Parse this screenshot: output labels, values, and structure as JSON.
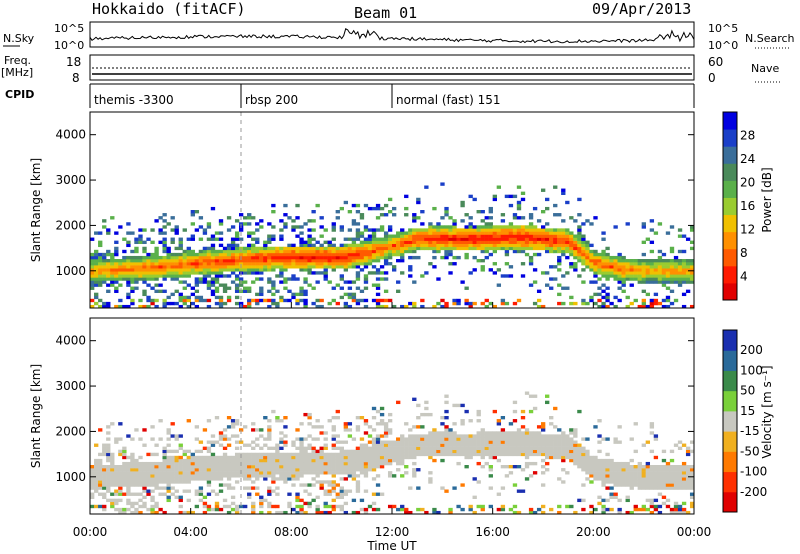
{
  "header": {
    "station": "Hokkaido (fitACF)",
    "beam": "Beam 01",
    "date": "09/Apr/2013"
  },
  "noise_panel": {
    "left_label": "N.Sky",
    "right_label": "N.Search",
    "yticks_left": [
      "10^5",
      "10^0"
    ],
    "yticks_right": [
      "10^5",
      "10^0"
    ]
  },
  "freq_panel": {
    "left_label_1": "Freq.",
    "left_label_2": "[MHz]",
    "left_ticks": [
      "18",
      "8"
    ],
    "right_label": "Nave",
    "right_ticks": [
      "60",
      "0"
    ]
  },
  "cpid_panel": {
    "label": "CPID",
    "segments": [
      {
        "label": "themis -3300",
        "start_hour": 0,
        "end_hour": 6.0
      },
      {
        "label": "rbsp 200",
        "start_hour": 6.0,
        "end_hour": 12.0
      },
      {
        "label": "normal (fast) 151",
        "start_hour": 12.0,
        "end_hour": 24.0
      }
    ]
  },
  "power_panel": {
    "ylabel": "Slant Range [km]",
    "yticks": [
      "4000",
      "3000",
      "2000",
      "1000"
    ],
    "colorbar_label": "Power [dB]",
    "colorbar_ticks": [
      "28",
      "24",
      "20",
      "16",
      "12",
      "8",
      "4"
    ],
    "colors": [
      "#0000e0",
      "#1a3fc8",
      "#3a6e9a",
      "#4a8a5a",
      "#5ab04a",
      "#9acc30",
      "#f0c000",
      "#ff9000",
      "#ff5a00",
      "#ff1a00",
      "#e00000"
    ]
  },
  "velocity_panel": {
    "ylabel": "Slant Range [km]",
    "yticks": [
      "4000",
      "3000",
      "2000",
      "1000"
    ],
    "colorbar_label": "Velocity [m s⁻¹]",
    "colorbar_ticks": [
      "200",
      "100",
      "50",
      "15",
      "-15",
      "-50",
      "-100",
      "-200"
    ],
    "colors": [
      "#1a2fb0",
      "#2a6a9a",
      "#3a8a4a",
      "#7ad03a",
      "#c8c8c0",
      "#f0b020",
      "#ff7a00",
      "#ff3000",
      "#e00000"
    ]
  },
  "xaxis": {
    "label": "Time UT",
    "ticks": [
      "00:00",
      "04:00",
      "08:00",
      "12:00",
      "16:00",
      "20:00",
      "00:00"
    ]
  },
  "chart_data": {
    "type": "heatmap",
    "title": "Hokkaido (fitACF) Beam 01 09/Apr/2013",
    "xlabel": "Time UT",
    "ylabel": "Slant Range [km]",
    "xlim_hours": [
      0,
      24
    ],
    "ylim_km": [
      180,
      4500
    ],
    "panels": [
      {
        "name": "Power",
        "units": "dB",
        "colorbar_range": [
          0,
          30
        ],
        "main_echo_band": {
          "hours": [
            0,
            2,
            4,
            6,
            8,
            10,
            11,
            12,
            13,
            14,
            15,
            16,
            17,
            18,
            19,
            20,
            21,
            22,
            23,
            24
          ],
          "range_km": [
            1000,
            1050,
            1150,
            1250,
            1300,
            1300,
            1400,
            1550,
            1700,
            1720,
            1700,
            1720,
            1750,
            1700,
            1650,
            1200,
            1050,
            1000,
            1000,
            1000
          ],
          "peak_power_db": [
            22,
            24,
            25,
            26,
            28,
            28,
            26,
            24,
            26,
            28,
            28,
            28,
            28,
            28,
            26,
            24,
            24,
            22,
            22,
            22
          ]
        }
      },
      {
        "name": "Velocity",
        "units": "m s-1",
        "colorbar_range": [
          -200,
          200
        ],
        "dominant_value_m_s": 0
      }
    ]
  }
}
